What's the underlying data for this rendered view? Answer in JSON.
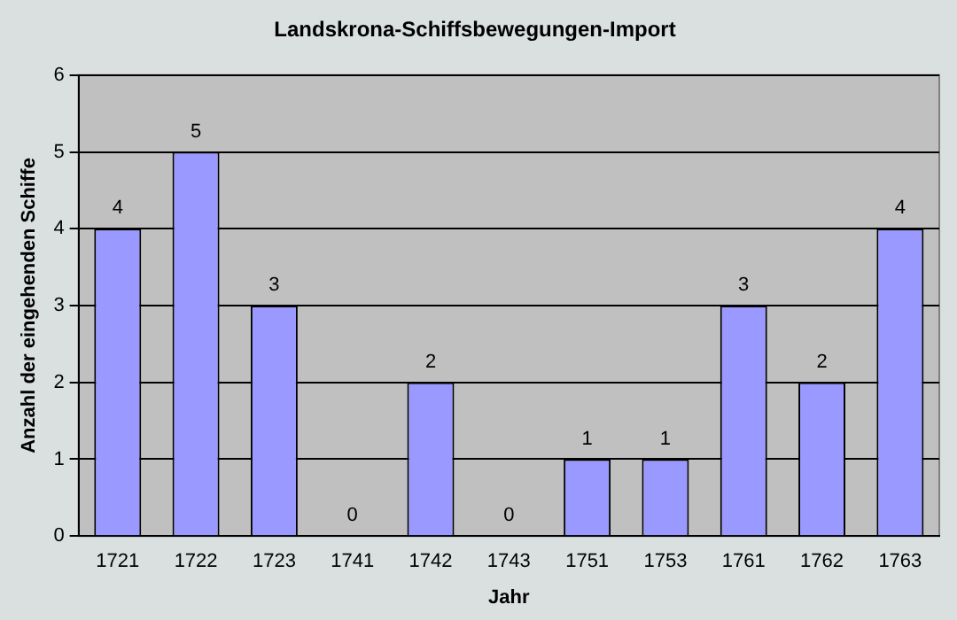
{
  "chart_data": {
    "type": "bar",
    "title": "Landskrona-Schiffsbewegungen-Import",
    "xlabel": "Jahr",
    "ylabel": "Anzahl der eingehenden Schiffe",
    "categories": [
      "1721",
      "1722",
      "1723",
      "1741",
      "1742",
      "1743",
      "1751",
      "1753",
      "1761",
      "1762",
      "1763"
    ],
    "values": [
      4,
      5,
      3,
      0,
      2,
      0,
      1,
      1,
      3,
      2,
      4
    ],
    "color": "#9999ff",
    "ylim": [
      0,
      6
    ],
    "yticks": [
      0,
      1,
      2,
      3,
      4,
      5,
      6
    ],
    "grid": "y",
    "data_labels": true,
    "legend": false
  }
}
